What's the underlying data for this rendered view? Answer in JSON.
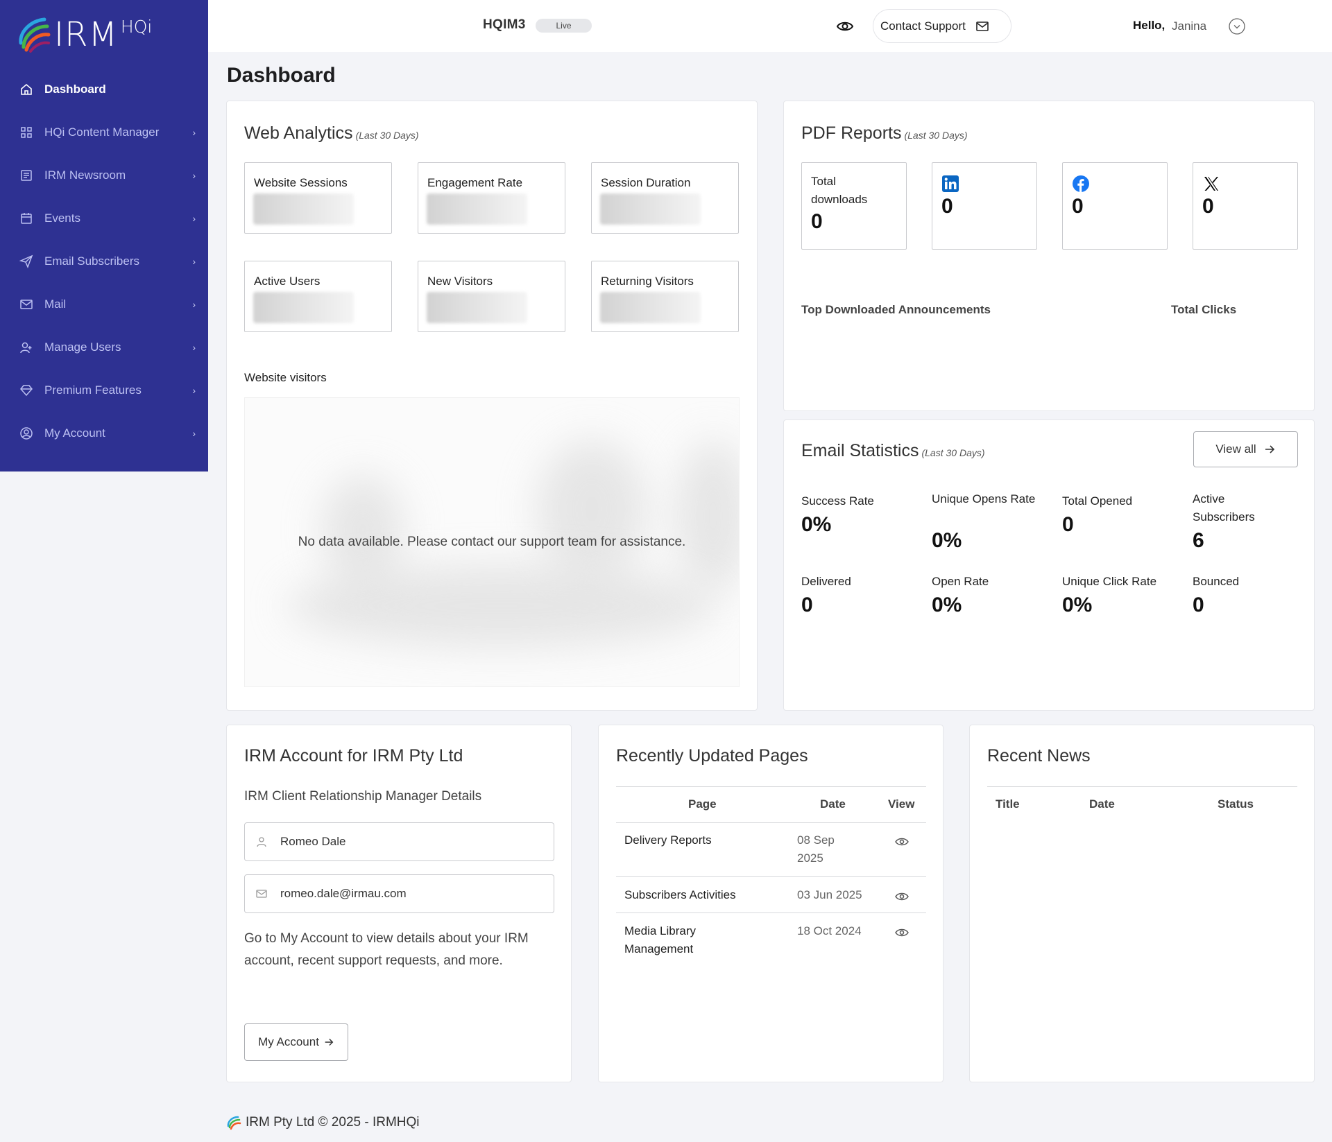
{
  "brand": {
    "name": "IRM",
    "suffix": "HQi"
  },
  "sidebar": {
    "items": [
      {
        "label": "Dashboard",
        "icon": "home-icon",
        "active": true
      },
      {
        "label": "HQi Content Manager",
        "icon": "grid-icon"
      },
      {
        "label": "IRM Newsroom",
        "icon": "newspaper-icon"
      },
      {
        "label": "Events",
        "icon": "calendar-icon"
      },
      {
        "label": "Email Subscribers",
        "icon": "send-icon"
      },
      {
        "label": "Mail",
        "icon": "mail-icon"
      },
      {
        "label": "Manage Users",
        "icon": "users-icon"
      },
      {
        "label": "Premium Features",
        "icon": "diamond-icon"
      },
      {
        "label": "My Account",
        "icon": "account-circle-icon"
      }
    ]
  },
  "header": {
    "site": "HQIM3",
    "status": "Live",
    "support_label": "Contact Support",
    "greeting": "Hello,",
    "user_name": "Janina"
  },
  "page_title": "Dashboard",
  "web_analytics": {
    "title": "Web Analytics",
    "period": "(Last 30 Days)",
    "metrics": [
      "Website Sessions",
      "Engagement Rate",
      "Session Duration",
      "Active Users",
      "New Visitors",
      "Returning Visitors"
    ],
    "visitors_label": "Website visitors",
    "no_data": "No data available. Please contact our support team for assistance."
  },
  "pdf_reports": {
    "title": "PDF Reports",
    "period": "(Last 30 Days)",
    "total_label": "Total downloads",
    "total_value": "0",
    "social": [
      {
        "icon": "linkedin-icon",
        "value": "0",
        "color": "#0a66c2"
      },
      {
        "icon": "facebook-icon",
        "value": "0",
        "color": "#1877f2"
      },
      {
        "icon": "x-icon",
        "value": "0",
        "color": "#000000"
      }
    ],
    "col_announcements": "Top Downloaded Announcements",
    "col_clicks": "Total Clicks"
  },
  "email_stats": {
    "title": "Email Statistics",
    "period": "(Last 30 Days)",
    "view_all": "View all",
    "stats": [
      {
        "label": "Success Rate",
        "value": "0%"
      },
      {
        "label": "Unique Opens Rate",
        "value": "0%"
      },
      {
        "label": "Total Opened",
        "value": "0"
      },
      {
        "label": "Active Subscribers",
        "value": "6"
      },
      {
        "label": "Delivered",
        "value": "0"
      },
      {
        "label": "Open Rate",
        "value": "0%"
      },
      {
        "label": "Unique Click Rate",
        "value": "0%"
      },
      {
        "label": "Bounced",
        "value": "0"
      }
    ]
  },
  "account": {
    "title": "IRM Account for IRM Pty Ltd",
    "subtitle": "IRM Client Relationship Manager Details",
    "manager_name": "Romeo Dale",
    "manager_email": "romeo.dale@irmau.com",
    "description": "Go to My Account to view details about your IRM account, recent support requests, and more.",
    "button": "My Account"
  },
  "recent_pages": {
    "title": "Recently Updated Pages",
    "headers": {
      "page": "Page",
      "date": "Date",
      "view": "View"
    },
    "rows": [
      {
        "page": "Delivery Reports",
        "date": "08 Sep 2025"
      },
      {
        "page": "Subscribers Activities",
        "date": "03 Jun 2025"
      },
      {
        "page": "Media Library Management",
        "date": "18 Oct 2024"
      }
    ]
  },
  "recent_news": {
    "title": "Recent News",
    "headers": {
      "title": "Title",
      "date": "Date",
      "status": "Status"
    }
  },
  "footer": {
    "text": "IRM Pty Ltd © 2025 - IRMHQi"
  }
}
